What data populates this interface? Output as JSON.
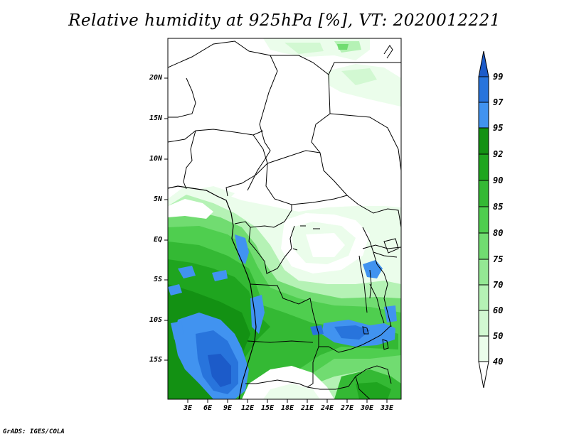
{
  "title": "Relative humidity at 925hPa [%], VT: 2020012221",
  "credit": "GrADS: IGES/COLA",
  "map": {
    "lat_ticks": [
      "20N",
      "15N",
      "10N",
      "5N",
      "EQ",
      "5S",
      "10S",
      "15S"
    ],
    "lon_ticks": [
      "3E",
      "6E",
      "9E",
      "12E",
      "15E",
      "18E",
      "21E",
      "24E",
      "27E",
      "30E",
      "33E"
    ]
  },
  "colorbar": {
    "levels": [
      "99",
      "97",
      "95",
      "92",
      "90",
      "85",
      "80",
      "75",
      "70",
      "60",
      "50",
      "40"
    ],
    "colors": {
      "over_99": "#1c5bc9",
      "97_99": "#2874dc",
      "95_97": "#4193f0",
      "92_95": "#139113",
      "90_92": "#1fa51f",
      "85_90": "#34b934",
      "80_85": "#4fce4f",
      "75_80": "#71dc71",
      "70_75": "#94e894",
      "60_70": "#b5f2b5",
      "50_60": "#d2f8d2",
      "40_50": "#ebfdeb",
      "under_40": "#ffffff"
    }
  }
}
